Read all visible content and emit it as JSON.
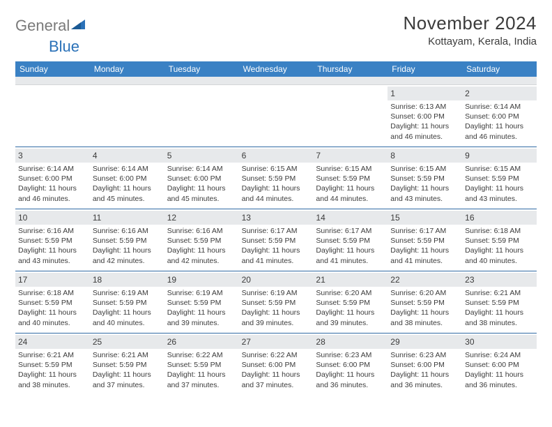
{
  "logo": {
    "general": "General",
    "blue": "Blue"
  },
  "header": {
    "title": "November 2024",
    "location": "Kottayam, Kerala, India"
  },
  "colors": {
    "header_bar": "#3a81c4",
    "daynum_bg": "#e7e9eb",
    "week_border": "#2f6aa3",
    "text": "#3b3b3b",
    "logo_gray": "#7a7a7a",
    "logo_blue": "#2a71b8"
  },
  "daynames": [
    "Sunday",
    "Monday",
    "Tuesday",
    "Wednesday",
    "Thursday",
    "Friday",
    "Saturday"
  ],
  "weeks": [
    [
      null,
      null,
      null,
      null,
      null,
      {
        "n": "1",
        "sr": "Sunrise: 6:13 AM",
        "ss": "Sunset: 6:00 PM",
        "d1": "Daylight: 11 hours",
        "d2": "and 46 minutes."
      },
      {
        "n": "2",
        "sr": "Sunrise: 6:14 AM",
        "ss": "Sunset: 6:00 PM",
        "d1": "Daylight: 11 hours",
        "d2": "and 46 minutes."
      }
    ],
    [
      {
        "n": "3",
        "sr": "Sunrise: 6:14 AM",
        "ss": "Sunset: 6:00 PM",
        "d1": "Daylight: 11 hours",
        "d2": "and 46 minutes."
      },
      {
        "n": "4",
        "sr": "Sunrise: 6:14 AM",
        "ss": "Sunset: 6:00 PM",
        "d1": "Daylight: 11 hours",
        "d2": "and 45 minutes."
      },
      {
        "n": "5",
        "sr": "Sunrise: 6:14 AM",
        "ss": "Sunset: 6:00 PM",
        "d1": "Daylight: 11 hours",
        "d2": "and 45 minutes."
      },
      {
        "n": "6",
        "sr": "Sunrise: 6:15 AM",
        "ss": "Sunset: 5:59 PM",
        "d1": "Daylight: 11 hours",
        "d2": "and 44 minutes."
      },
      {
        "n": "7",
        "sr": "Sunrise: 6:15 AM",
        "ss": "Sunset: 5:59 PM",
        "d1": "Daylight: 11 hours",
        "d2": "and 44 minutes."
      },
      {
        "n": "8",
        "sr": "Sunrise: 6:15 AM",
        "ss": "Sunset: 5:59 PM",
        "d1": "Daylight: 11 hours",
        "d2": "and 43 minutes."
      },
      {
        "n": "9",
        "sr": "Sunrise: 6:15 AM",
        "ss": "Sunset: 5:59 PM",
        "d1": "Daylight: 11 hours",
        "d2": "and 43 minutes."
      }
    ],
    [
      {
        "n": "10",
        "sr": "Sunrise: 6:16 AM",
        "ss": "Sunset: 5:59 PM",
        "d1": "Daylight: 11 hours",
        "d2": "and 43 minutes."
      },
      {
        "n": "11",
        "sr": "Sunrise: 6:16 AM",
        "ss": "Sunset: 5:59 PM",
        "d1": "Daylight: 11 hours",
        "d2": "and 42 minutes."
      },
      {
        "n": "12",
        "sr": "Sunrise: 6:16 AM",
        "ss": "Sunset: 5:59 PM",
        "d1": "Daylight: 11 hours",
        "d2": "and 42 minutes."
      },
      {
        "n": "13",
        "sr": "Sunrise: 6:17 AM",
        "ss": "Sunset: 5:59 PM",
        "d1": "Daylight: 11 hours",
        "d2": "and 41 minutes."
      },
      {
        "n": "14",
        "sr": "Sunrise: 6:17 AM",
        "ss": "Sunset: 5:59 PM",
        "d1": "Daylight: 11 hours",
        "d2": "and 41 minutes."
      },
      {
        "n": "15",
        "sr": "Sunrise: 6:17 AM",
        "ss": "Sunset: 5:59 PM",
        "d1": "Daylight: 11 hours",
        "d2": "and 41 minutes."
      },
      {
        "n": "16",
        "sr": "Sunrise: 6:18 AM",
        "ss": "Sunset: 5:59 PM",
        "d1": "Daylight: 11 hours",
        "d2": "and 40 minutes."
      }
    ],
    [
      {
        "n": "17",
        "sr": "Sunrise: 6:18 AM",
        "ss": "Sunset: 5:59 PM",
        "d1": "Daylight: 11 hours",
        "d2": "and 40 minutes."
      },
      {
        "n": "18",
        "sr": "Sunrise: 6:19 AM",
        "ss": "Sunset: 5:59 PM",
        "d1": "Daylight: 11 hours",
        "d2": "and 40 minutes."
      },
      {
        "n": "19",
        "sr": "Sunrise: 6:19 AM",
        "ss": "Sunset: 5:59 PM",
        "d1": "Daylight: 11 hours",
        "d2": "and 39 minutes."
      },
      {
        "n": "20",
        "sr": "Sunrise: 6:19 AM",
        "ss": "Sunset: 5:59 PM",
        "d1": "Daylight: 11 hours",
        "d2": "and 39 minutes."
      },
      {
        "n": "21",
        "sr": "Sunrise: 6:20 AM",
        "ss": "Sunset: 5:59 PM",
        "d1": "Daylight: 11 hours",
        "d2": "and 39 minutes."
      },
      {
        "n": "22",
        "sr": "Sunrise: 6:20 AM",
        "ss": "Sunset: 5:59 PM",
        "d1": "Daylight: 11 hours",
        "d2": "and 38 minutes."
      },
      {
        "n": "23",
        "sr": "Sunrise: 6:21 AM",
        "ss": "Sunset: 5:59 PM",
        "d1": "Daylight: 11 hours",
        "d2": "and 38 minutes."
      }
    ],
    [
      {
        "n": "24",
        "sr": "Sunrise: 6:21 AM",
        "ss": "Sunset: 5:59 PM",
        "d1": "Daylight: 11 hours",
        "d2": "and 38 minutes."
      },
      {
        "n": "25",
        "sr": "Sunrise: 6:21 AM",
        "ss": "Sunset: 5:59 PM",
        "d1": "Daylight: 11 hours",
        "d2": "and 37 minutes."
      },
      {
        "n": "26",
        "sr": "Sunrise: 6:22 AM",
        "ss": "Sunset: 5:59 PM",
        "d1": "Daylight: 11 hours",
        "d2": "and 37 minutes."
      },
      {
        "n": "27",
        "sr": "Sunrise: 6:22 AM",
        "ss": "Sunset: 6:00 PM",
        "d1": "Daylight: 11 hours",
        "d2": "and 37 minutes."
      },
      {
        "n": "28",
        "sr": "Sunrise: 6:23 AM",
        "ss": "Sunset: 6:00 PM",
        "d1": "Daylight: 11 hours",
        "d2": "and 36 minutes."
      },
      {
        "n": "29",
        "sr": "Sunrise: 6:23 AM",
        "ss": "Sunset: 6:00 PM",
        "d1": "Daylight: 11 hours",
        "d2": "and 36 minutes."
      },
      {
        "n": "30",
        "sr": "Sunrise: 6:24 AM",
        "ss": "Sunset: 6:00 PM",
        "d1": "Daylight: 11 hours",
        "d2": "and 36 minutes."
      }
    ]
  ]
}
